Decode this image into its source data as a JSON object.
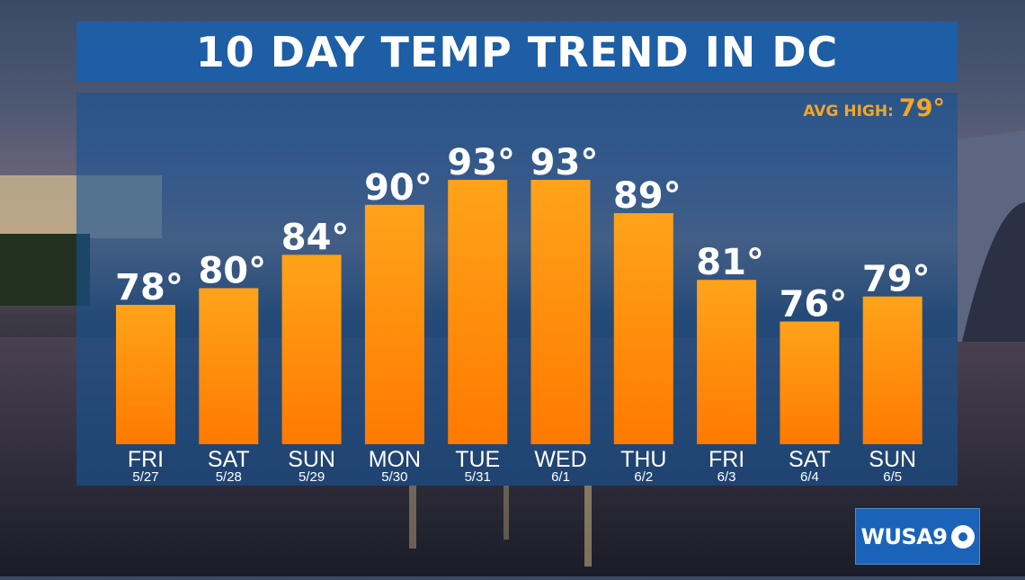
{
  "title": "10 DAY TEMP TREND IN DC",
  "avg_high": {
    "label": "AVG HIGH:",
    "value": "79°"
  },
  "logo": {
    "text": "WUSA9"
  },
  "colors": {
    "title_bg": "#1a60aa",
    "bar_top": "#ffa31a",
    "bar_bottom": "#ff7a00",
    "avg_text": "#f5a623"
  },
  "chart_data": {
    "type": "bar",
    "title": "10 DAY TEMP TREND IN DC",
    "categories": [
      "FRI",
      "SAT",
      "SUN",
      "MON",
      "TUE",
      "WED",
      "THU",
      "FRI",
      "SAT",
      "SUN"
    ],
    "dates": [
      "5/27",
      "5/28",
      "5/29",
      "5/30",
      "5/31",
      "6/1",
      "6/2",
      "6/3",
      "6/4",
      "6/5"
    ],
    "values": [
      78,
      80,
      84,
      90,
      93,
      93,
      89,
      81,
      76,
      79
    ],
    "value_labels": [
      "78°",
      "80°",
      "84°",
      "90°",
      "93°",
      "93°",
      "89°",
      "81°",
      "76°",
      "79°"
    ],
    "unit": "°F",
    "grid": false,
    "legend": "none"
  }
}
